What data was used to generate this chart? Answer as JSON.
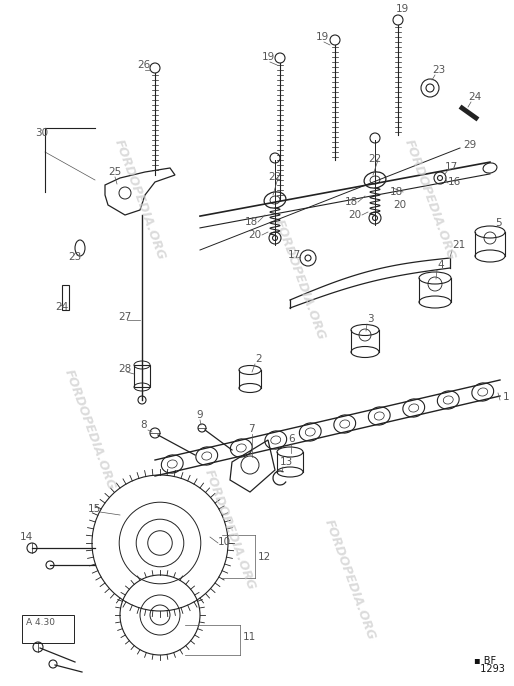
{
  "bg_color": "#ffffff",
  "line_color": "#222222",
  "label_color": "#555555",
  "watermark_color": "#cccccc",
  "watermark_text": "FORDOPEDIA.ORG",
  "fig_width": 5.14,
  "fig_height": 6.86,
  "dpi": 100
}
